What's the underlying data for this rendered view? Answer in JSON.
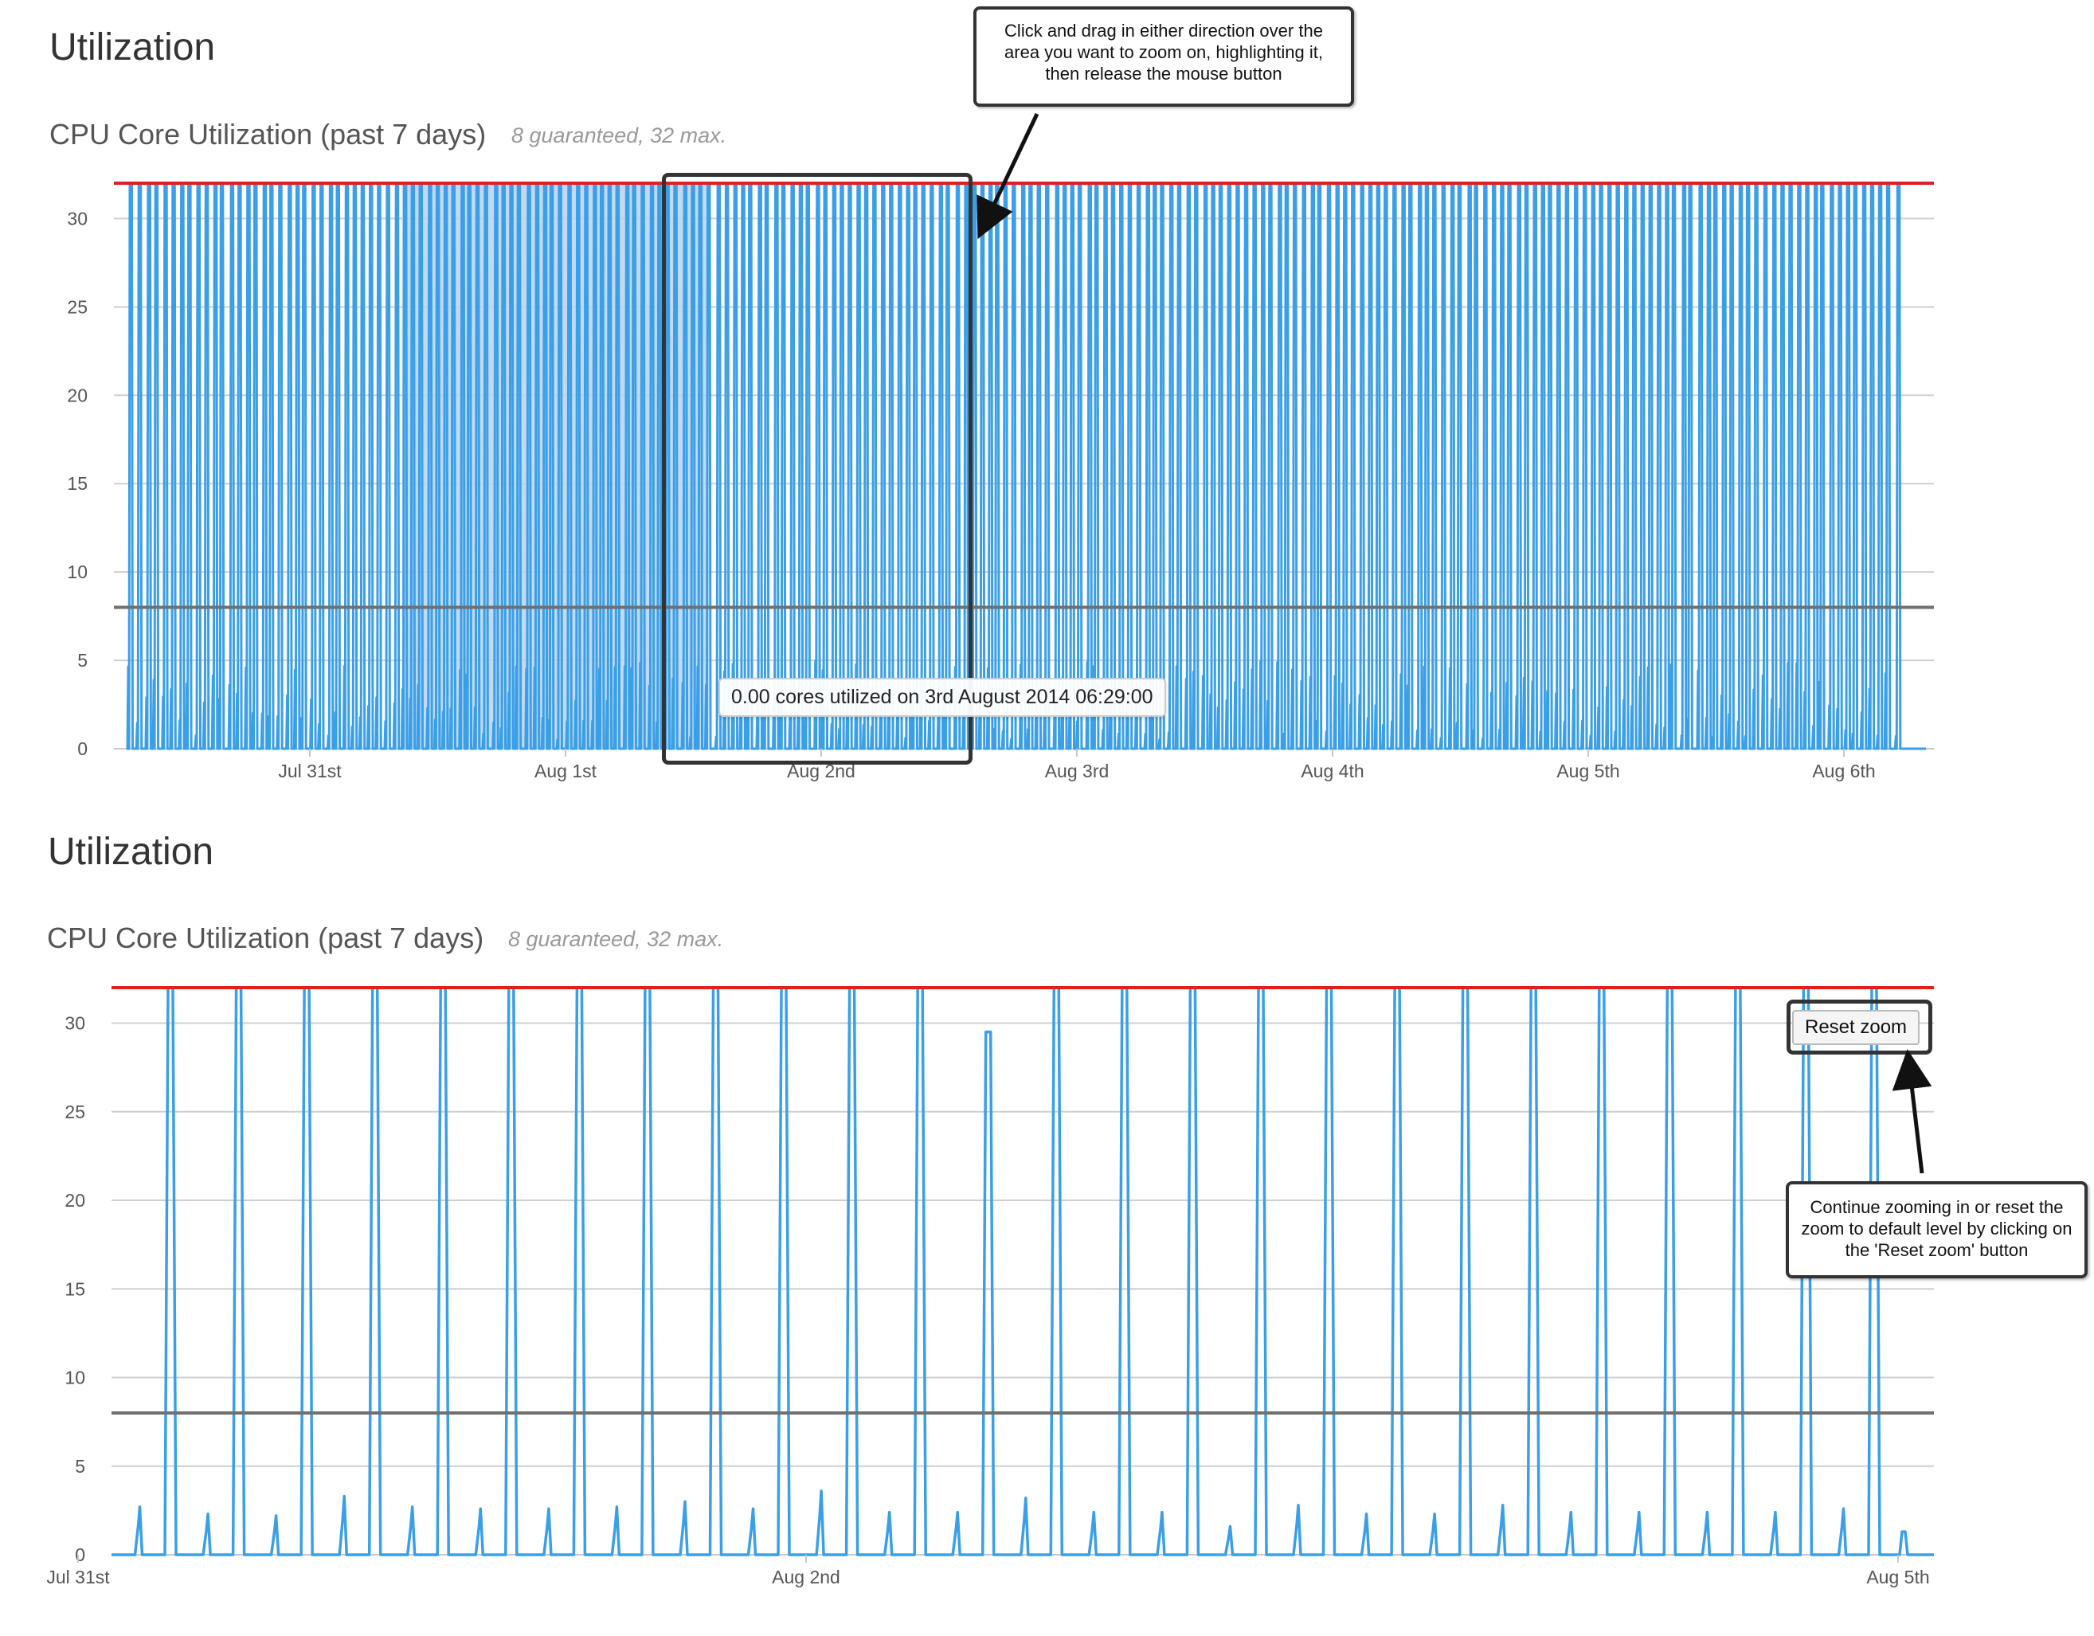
{
  "top": {
    "section_title": "Utilization",
    "chart_title": "CPU Core Utilization (past 7 days)",
    "chart_subtitle": "8 guaranteed, 32 max.",
    "tooltip": "0.00 cores utilized on 3rd August 2014 06:29:00",
    "callout": "Click and drag in either direction over the area you want to zoom on, highlighting it, then release the mouse button"
  },
  "bottom": {
    "section_title": "Utilization",
    "chart_title": "CPU Core Utilization (past 7 days)",
    "chart_subtitle": "8 guaranteed, 32 max.",
    "reset_zoom_label": "Reset zoom",
    "callout": "Continue zooming in or reset the zoom to default level by clicking on the 'Reset zoom' button"
  },
  "colors": {
    "series": "#3a9fe6",
    "max_line": "#e02020",
    "guaranteed_line": "#707070",
    "grid": "#cfcfcf",
    "selection": "#b7d3ee"
  },
  "chart_data": [
    {
      "type": "line",
      "title": "CPU Core Utilization (past 7 days)",
      "subtitle": "8 guaranteed, 32 max.",
      "xlabel": "",
      "ylabel": "",
      "x_tick_labels": [
        "Jul 31st",
        "Aug 1st",
        "Aug 2nd",
        "Aug 3rd",
        "Aug 4th",
        "Aug 5th",
        "Aug 6th"
      ],
      "x_range_days": [
        -0.72,
        6.3
      ],
      "y_ticks": [
        0,
        5,
        10,
        15,
        20,
        25,
        30
      ],
      "ylim": [
        0,
        32
      ],
      "plot_lines": [
        {
          "name": "max",
          "value": 32
        },
        {
          "name": "guaranteed",
          "value": 8
        }
      ],
      "series": [
        {
          "name": "cores utilized",
          "pattern": "frequent spikes reaching 32 cores with small bursts of 1-5 cores between them",
          "peak": 32,
          "baseline": 0,
          "spike_count": 215
        }
      ],
      "selection_days": [
        0.36,
        1.56
      ]
    },
    {
      "type": "line",
      "title": "CPU Core Utilization (past 7 days)",
      "subtitle": "8 guaranteed, 32 max.",
      "xlabel": "",
      "ylabel": "",
      "x_tick_labels": [
        "Jul 31st",
        "Aug 2nd",
        "Aug 5th"
      ],
      "x_tick_days": [
        0,
        2,
        5
      ],
      "ylim": [
        0,
        32
      ],
      "y_ticks": [
        0,
        5,
        10,
        15,
        20,
        25,
        30
      ],
      "plot_lines": [
        {
          "name": "max",
          "value": 32
        },
        {
          "name": "guaranteed",
          "value": 8
        }
      ],
      "series": [
        {
          "name": "cores utilized",
          "spike_peaks": [
            32,
            32,
            32,
            32,
            32,
            32,
            32,
            32,
            32,
            32,
            32,
            32,
            29.5,
            32,
            32,
            32,
            32,
            32,
            32,
            32,
            32,
            32,
            32,
            32,
            32,
            32
          ],
          "small_burst_peaks": [
            2.7,
            2.3,
            2.2,
            3.3,
            2.7,
            2.6,
            2.6,
            2.7,
            3.0,
            2.6,
            3.6,
            2.4,
            2.4,
            3.2,
            2.4,
            2.4,
            1.6,
            2.8,
            2.3,
            2.3,
            2.8,
            2.4,
            2.4,
            2.4,
            2.4,
            2.6,
            1.3
          ],
          "baseline": 0
        }
      ]
    }
  ]
}
